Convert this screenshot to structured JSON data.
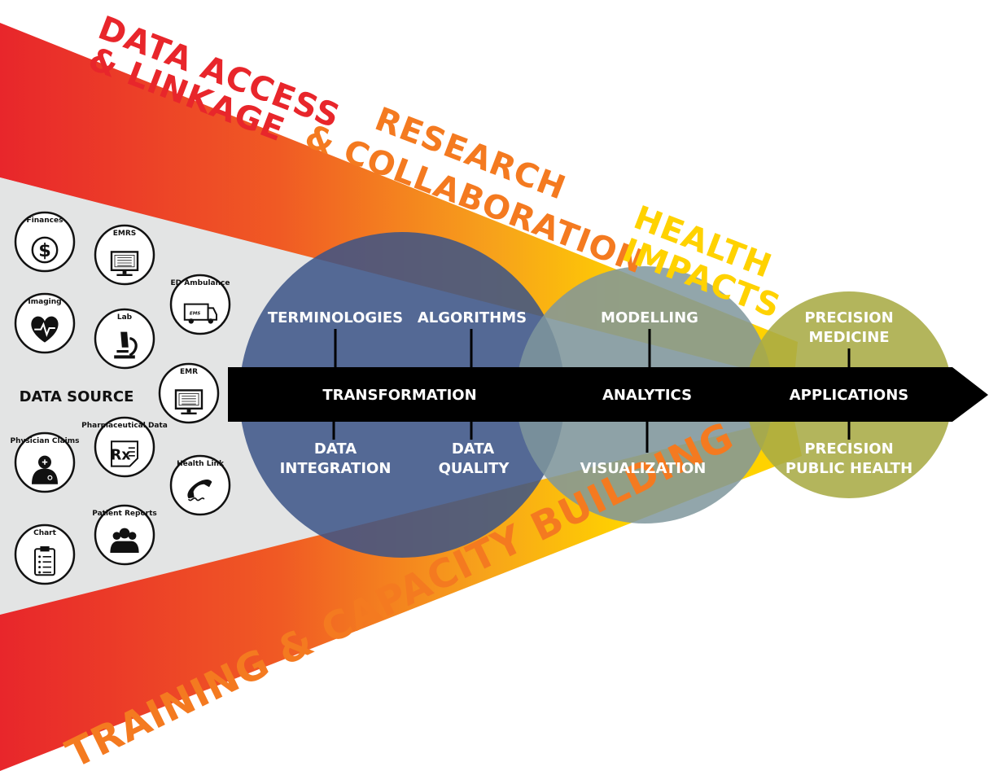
{
  "banners": {
    "data_access": [
      "DATA ACCESS",
      "& LINKAGE"
    ],
    "research": [
      "RESEARCH",
      "& COLLABORATION"
    ],
    "health": [
      "HEALTH",
      "IMPACTS"
    ],
    "training": "TRAINING & CAPACITY BUILDING"
  },
  "data_source_label": "DATA SOURCE",
  "sources": [
    {
      "label": "Finances",
      "icon": "dollar-icon"
    },
    {
      "label": "EMRS",
      "icon": "monitor-icon"
    },
    {
      "label": "ED Ambulance",
      "icon": "ambulance-icon",
      "badge": "EMS"
    },
    {
      "label": "Imaging",
      "icon": "heart-icon"
    },
    {
      "label": "Lab",
      "icon": "microscope-icon"
    },
    {
      "label": "EMR",
      "icon": "monitor-icon"
    },
    {
      "label": "Physician Claims",
      "icon": "physician-icon"
    },
    {
      "label": "Pharmaceutical Data",
      "icon": "rx-icon",
      "badge": "Rx"
    },
    {
      "label": "Health Link",
      "icon": "phone-icon"
    },
    {
      "label": "Chart",
      "icon": "clipboard-icon"
    },
    {
      "label": "Patient Reports",
      "icon": "people-icon"
    }
  ],
  "stages": {
    "transformation": "TRANSFORMATION",
    "analytics": "ANALYTICS",
    "applications": "APPLICATIONS"
  },
  "nodes": {
    "terminologies": "TERMINOLOGIES",
    "algorithms": "ALGORITHMS",
    "data_integration": [
      "DATA",
      "INTEGRATION"
    ],
    "data_quality": [
      "DATA",
      "QUALITY"
    ],
    "modelling": "MODELLING",
    "visualization": "VISUALIZATION",
    "precision_medicine": [
      "PRECISION",
      "MEDICINE"
    ],
    "precision_public_health": [
      "PRECISION",
      "PUBLIC HEALTH"
    ]
  },
  "colors": {
    "red": "#e8262b",
    "orange": "#f47a20",
    "amber": "#f7a21b",
    "yellow": "#ffd200",
    "grey": "#e3e4e4",
    "blue": "#3b5487",
    "slate": "#7f969c",
    "olive": "#a9ab45",
    "black": "#000000"
  }
}
